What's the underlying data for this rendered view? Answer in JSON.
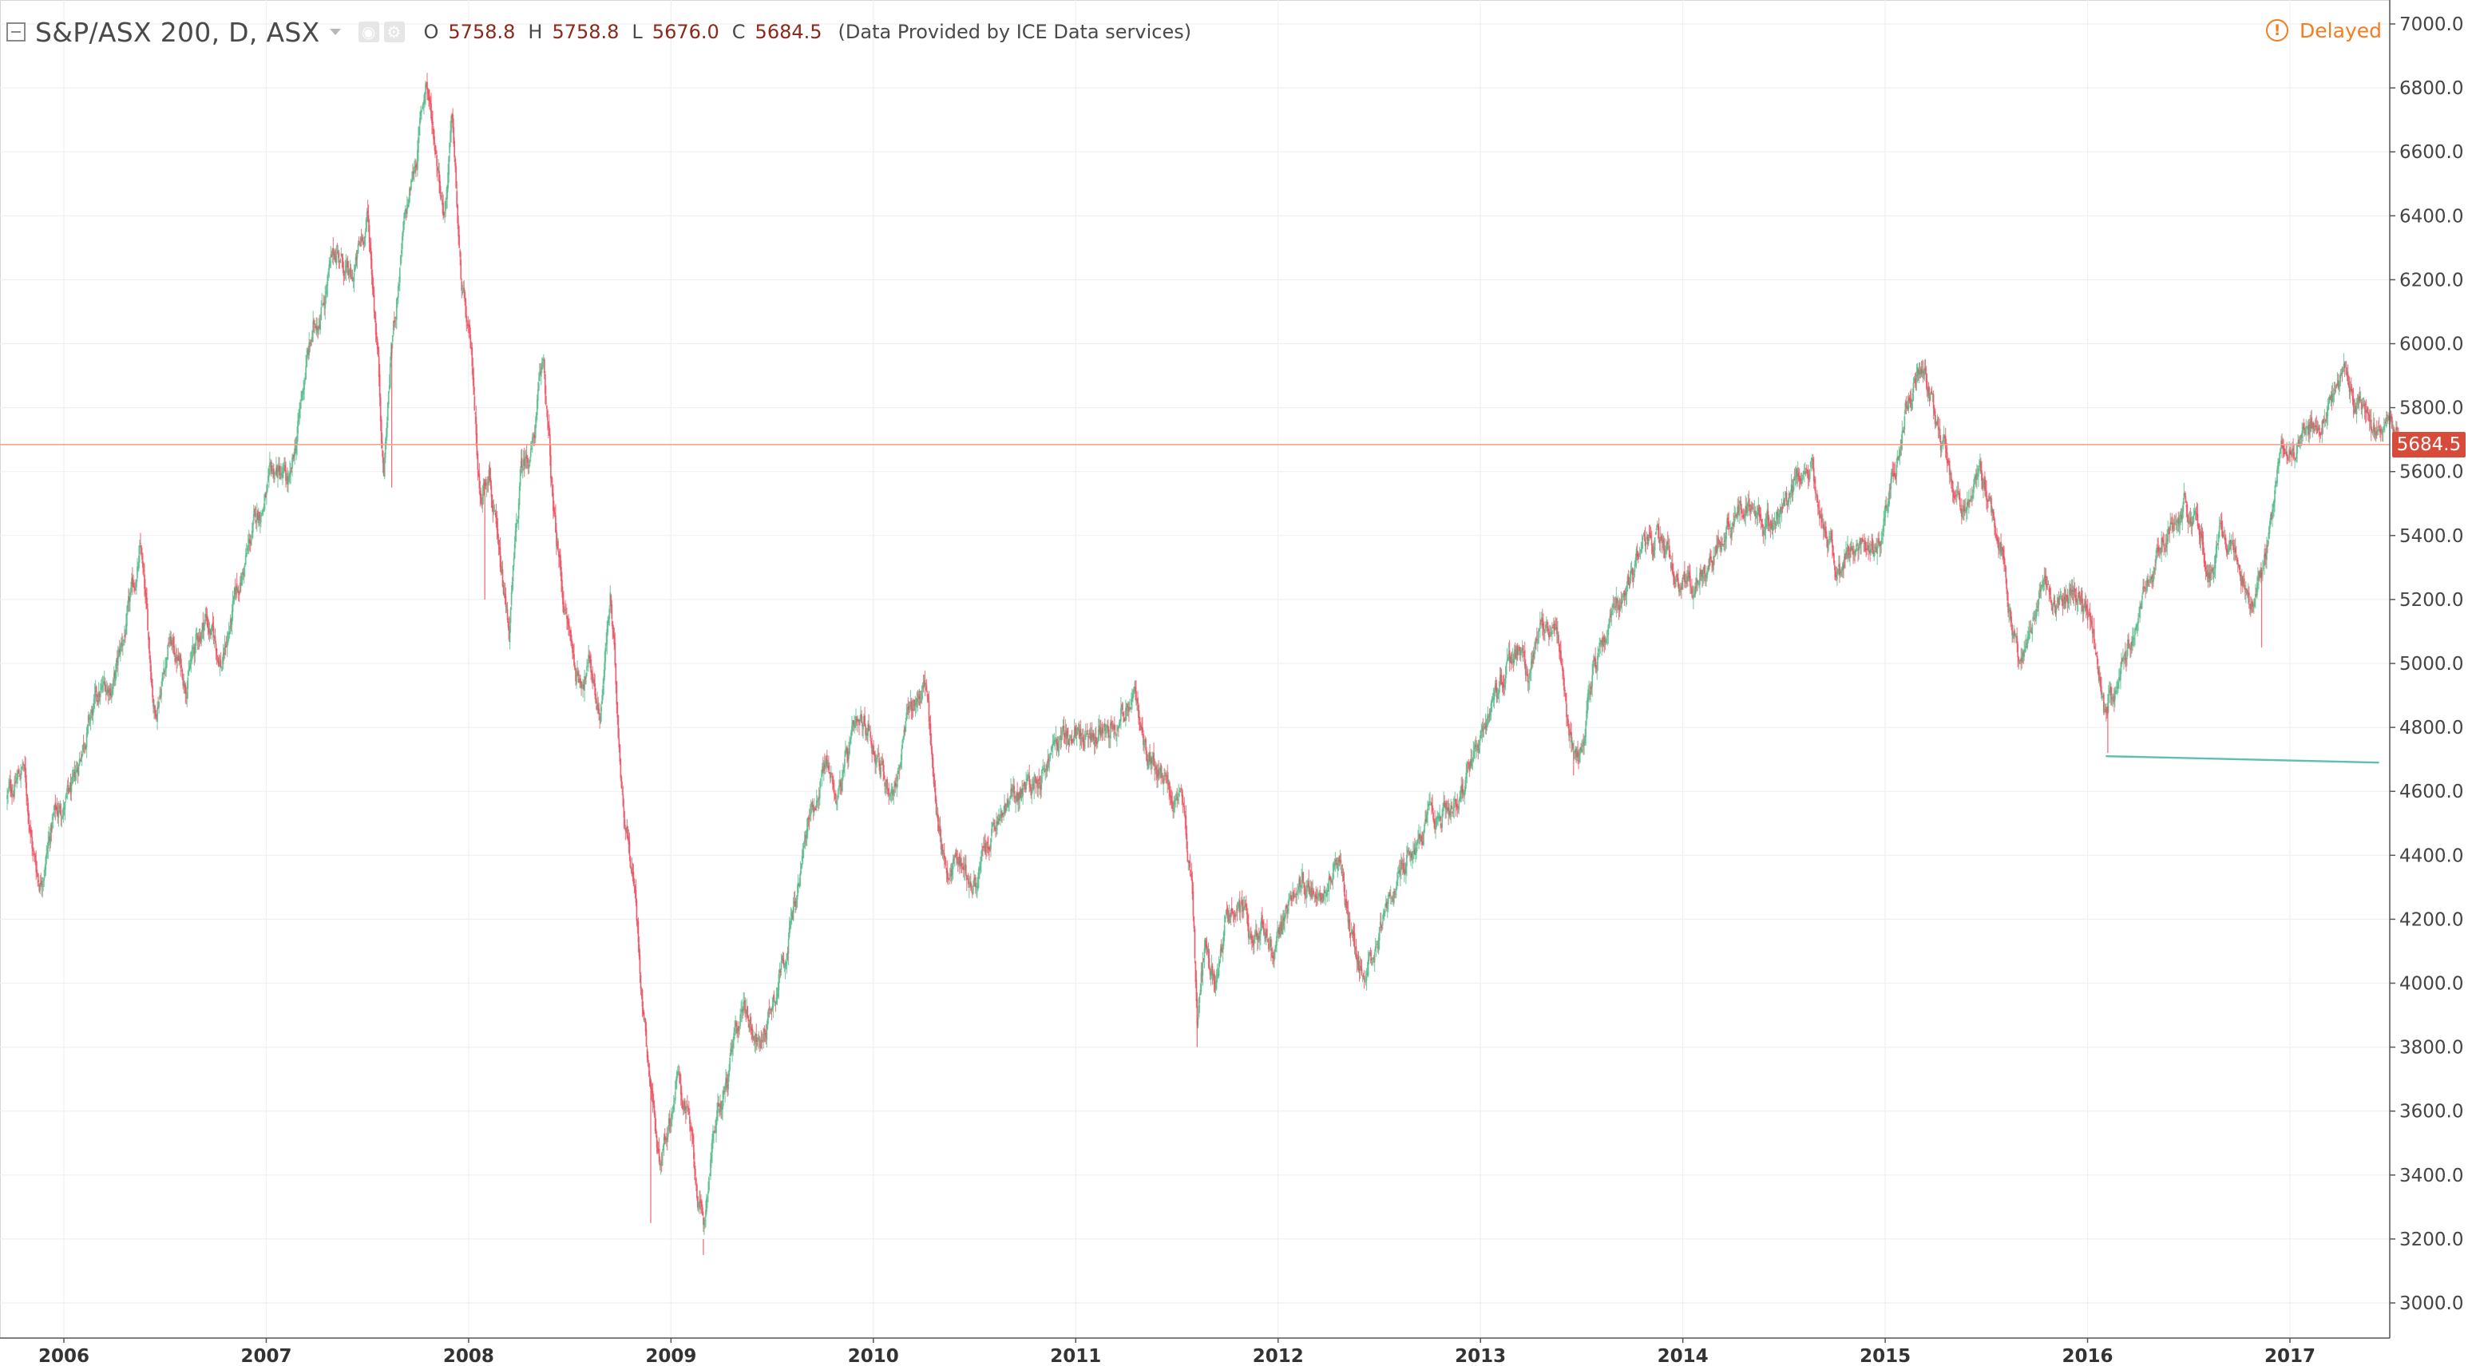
{
  "header": {
    "symbol_title": "S&P/ASX 200, D, ASX",
    "ohlc": [
      {
        "label": "O",
        "value": "5758.8"
      },
      {
        "label": "H",
        "value": "5758.8"
      },
      {
        "label": "L",
        "value": "5676.0"
      },
      {
        "label": "C",
        "value": "5684.5"
      }
    ],
    "provider_note": "(Data Provided by ICE Data services)",
    "delayed_label": "Delayed",
    "icons": {
      "collapse": "collapse-square-icon",
      "dropdown": "chevron-down-icon",
      "visibility": "eye-icon",
      "settings": "gear-icon",
      "delayed": "exclamation-circle-icon"
    }
  },
  "colors": {
    "up": "#53b987",
    "down": "#eb4d5c",
    "price_line": "#f0a58a",
    "price_badge": "#d84a3a",
    "trend_line": "#5cbfb1",
    "delayed": "#f57c1f",
    "grid": "#f0f0f0"
  },
  "chart_data": {
    "type": "candlestick",
    "title": "S&P/ASX 200, D, ASX",
    "last_price_label": "5684.5",
    "ylim": [
      2900,
      7050
    ],
    "yticks": [
      "3000.0",
      "3200.0",
      "3400.0",
      "3600.0",
      "3800.0",
      "4000.0",
      "4200.0",
      "4400.0",
      "4600.0",
      "4800.0",
      "5000.0",
      "5200.0",
      "5400.0",
      "5600.0",
      "5800.0",
      "6000.0",
      "6200.0",
      "6400.0",
      "6600.0",
      "6800.0",
      "7000.0"
    ],
    "xticks": [
      "2006",
      "2007",
      "2008",
      "2009",
      "2010",
      "2011",
      "2012",
      "2013",
      "2014",
      "2015",
      "2016",
      "2017"
    ],
    "xlim": [
      2005.72,
      2017.54
    ],
    "grid": true,
    "path": [
      [
        2005.72,
        4580
      ],
      [
        2005.8,
        4680
      ],
      [
        2005.85,
        4400
      ],
      [
        2005.88,
        4320
      ],
      [
        2005.95,
        4520
      ],
      [
        2006.05,
        4600
      ],
      [
        2006.1,
        4780
      ],
      [
        2006.18,
        4900
      ],
      [
        2006.25,
        4950
      ],
      [
        2006.32,
        5150
      ],
      [
        2006.38,
        5350
      ],
      [
        2006.42,
        5050
      ],
      [
        2006.45,
        4850
      ],
      [
        2006.52,
        5080
      ],
      [
        2006.6,
        4950
      ],
      [
        2006.7,
        5150
      ],
      [
        2006.78,
        5000
      ],
      [
        2006.85,
        5200
      ],
      [
        2006.95,
        5450
      ],
      [
        2007.05,
        5600
      ],
      [
        2007.12,
        5550
      ],
      [
        2007.2,
        5950
      ],
      [
        2007.28,
        6150
      ],
      [
        2007.35,
        6300
      ],
      [
        2007.42,
        6180
      ],
      [
        2007.5,
        6400
      ],
      [
        2007.55,
        6000
      ],
      [
        2007.58,
        5600
      ],
      [
        2007.62,
        6000
      ],
      [
        2007.68,
        6350
      ],
      [
        2007.74,
        6580
      ],
      [
        2007.79,
        6830
      ],
      [
        2007.84,
        6600
      ],
      [
        2007.88,
        6420
      ],
      [
        2007.92,
        6700
      ],
      [
        2007.96,
        6200
      ],
      [
        2008.02,
        5900
      ],
      [
        2008.06,
        5500
      ],
      [
        2008.1,
        5650
      ],
      [
        2008.15,
        5300
      ],
      [
        2008.2,
        5100
      ],
      [
        2008.26,
        5600
      ],
      [
        2008.32,
        5700
      ],
      [
        2008.37,
        5950
      ],
      [
        2008.42,
        5450
      ],
      [
        2008.48,
        5150
      ],
      [
        2008.54,
        4950
      ],
      [
        2008.6,
        5000
      ],
      [
        2008.65,
        4850
      ],
      [
        2008.7,
        5200
      ],
      [
        2008.76,
        4600
      ],
      [
        2008.82,
        4300
      ],
      [
        2008.86,
        3950
      ],
      [
        2008.9,
        3700
      ],
      [
        2008.94,
        3450
      ],
      [
        2008.98,
        3550
      ],
      [
        2009.03,
        3700
      ],
      [
        2009.08,
        3600
      ],
      [
        2009.12,
        3400
      ],
      [
        2009.16,
        3200
      ],
      [
        2009.2,
        3500
      ],
      [
        2009.28,
        3700
      ],
      [
        2009.36,
        3950
      ],
      [
        2009.44,
        3800
      ],
      [
        2009.52,
        4000
      ],
      [
        2009.6,
        4200
      ],
      [
        2009.68,
        4500
      ],
      [
        2009.76,
        4700
      ],
      [
        2009.82,
        4600
      ],
      [
        2009.9,
        4750
      ],
      [
        2009.98,
        4800
      ],
      [
        2010.05,
        4650
      ],
      [
        2010.1,
        4600
      ],
      [
        2010.18,
        4850
      ],
      [
        2010.26,
        4950
      ],
      [
        2010.3,
        4600
      ],
      [
        2010.36,
        4350
      ],
      [
        2010.42,
        4400
      ],
      [
        2010.5,
        4300
      ],
      [
        2010.58,
        4450
      ],
      [
        2010.66,
        4550
      ],
      [
        2010.74,
        4600
      ],
      [
        2010.82,
        4650
      ],
      [
        2010.9,
        4750
      ],
      [
        2010.98,
        4780
      ],
      [
        2011.08,
        4750
      ],
      [
        2011.14,
        4820
      ],
      [
        2011.22,
        4850
      ],
      [
        2011.28,
        4900
      ],
      [
        2011.34,
        4750
      ],
      [
        2011.4,
        4650
      ],
      [
        2011.48,
        4580
      ],
      [
        2011.54,
        4500
      ],
      [
        2011.58,
        4200
      ],
      [
        2011.6,
        3900
      ],
      [
        2011.64,
        4150
      ],
      [
        2011.7,
        4000
      ],
      [
        2011.74,
        4200
      ],
      [
        2011.8,
        4280
      ],
      [
        2011.86,
        4150
      ],
      [
        2011.92,
        4200
      ],
      [
        2011.98,
        4100
      ],
      [
        2012.06,
        4250
      ],
      [
        2012.14,
        4300
      ],
      [
        2012.22,
        4320
      ],
      [
        2012.3,
        4400
      ],
      [
        2012.36,
        4150
      ],
      [
        2012.4,
        4050
      ],
      [
        2012.46,
        4100
      ],
      [
        2012.54,
        4250
      ],
      [
        2012.6,
        4300
      ],
      [
        2012.68,
        4450
      ],
      [
        2012.76,
        4500
      ],
      [
        2012.84,
        4550
      ],
      [
        2012.92,
        4600
      ],
      [
        2013.02,
        4800
      ],
      [
        2013.1,
        4950
      ],
      [
        2013.18,
        5050
      ],
      [
        2013.24,
        4950
      ],
      [
        2013.3,
        5150
      ],
      [
        2013.38,
        5050
      ],
      [
        2013.44,
        4750
      ],
      [
        2013.48,
        4700
      ],
      [
        2013.56,
        5000
      ],
      [
        2013.64,
        5150
      ],
      [
        2013.72,
        5250
      ],
      [
        2013.8,
        5350
      ],
      [
        2013.86,
        5400
      ],
      [
        2013.94,
        5300
      ],
      [
        2014.04,
        5250
      ],
      [
        2014.1,
        5300
      ],
      [
        2014.18,
        5400
      ],
      [
        2014.26,
        5450
      ],
      [
        2014.34,
        5500
      ],
      [
        2014.42,
        5450
      ],
      [
        2014.5,
        5500
      ],
      [
        2014.58,
        5550
      ],
      [
        2014.64,
        5600
      ],
      [
        2014.7,
        5400
      ],
      [
        2014.78,
        5300
      ],
      [
        2014.84,
        5400
      ],
      [
        2014.9,
        5300
      ],
      [
        2014.98,
        5400
      ],
      [
        2015.04,
        5600
      ],
      [
        2015.1,
        5800
      ],
      [
        2015.16,
        5900
      ],
      [
        2015.22,
        5850
      ],
      [
        2015.28,
        5700
      ],
      [
        2015.34,
        5550
      ],
      [
        2015.4,
        5500
      ],
      [
        2015.46,
        5600
      ],
      [
        2015.52,
        5500
      ],
      [
        2015.58,
        5350
      ],
      [
        2015.62,
        5150
      ],
      [
        2015.66,
        5000
      ],
      [
        2015.72,
        5100
      ],
      [
        2015.78,
        5300
      ],
      [
        2015.84,
        5200
      ],
      [
        2015.92,
        5250
      ],
      [
        2015.98,
        5200
      ],
      [
        2016.04,
        5050
      ],
      [
        2016.08,
        4850
      ],
      [
        2016.12,
        4880
      ],
      [
        2016.18,
        5000
      ],
      [
        2016.26,
        5200
      ],
      [
        2016.34,
        5350
      ],
      [
        2016.42,
        5450
      ],
      [
        2016.48,
        5500
      ],
      [
        2016.54,
        5450
      ],
      [
        2016.6,
        5300
      ],
      [
        2016.66,
        5400
      ],
      [
        2016.72,
        5350
      ],
      [
        2016.8,
        5200
      ],
      [
        2016.86,
        5300
      ],
      [
        2016.92,
        5500
      ],
      [
        2016.98,
        5700
      ],
      [
        2017.04,
        5680
      ],
      [
        2017.12,
        5750
      ],
      [
        2017.2,
        5800
      ],
      [
        2017.26,
        5900
      ],
      [
        2017.32,
        5850
      ],
      [
        2017.38,
        5800
      ],
      [
        2017.44,
        5700
      ],
      [
        2017.5,
        5750
      ],
      [
        2017.54,
        5684.5
      ]
    ],
    "spikes": [
      [
        2007.62,
        5550
      ],
      [
        2008.08,
        5200
      ],
      [
        2008.9,
        3250
      ],
      [
        2009.16,
        3150
      ],
      [
        2011.6,
        3800
      ],
      [
        2013.46,
        4650
      ],
      [
        2016.1,
        4720
      ],
      [
        2016.86,
        5050
      ]
    ],
    "trend_line": [
      [
        2016.09,
        4710
      ],
      [
        2017.44,
        4690
      ]
    ]
  }
}
